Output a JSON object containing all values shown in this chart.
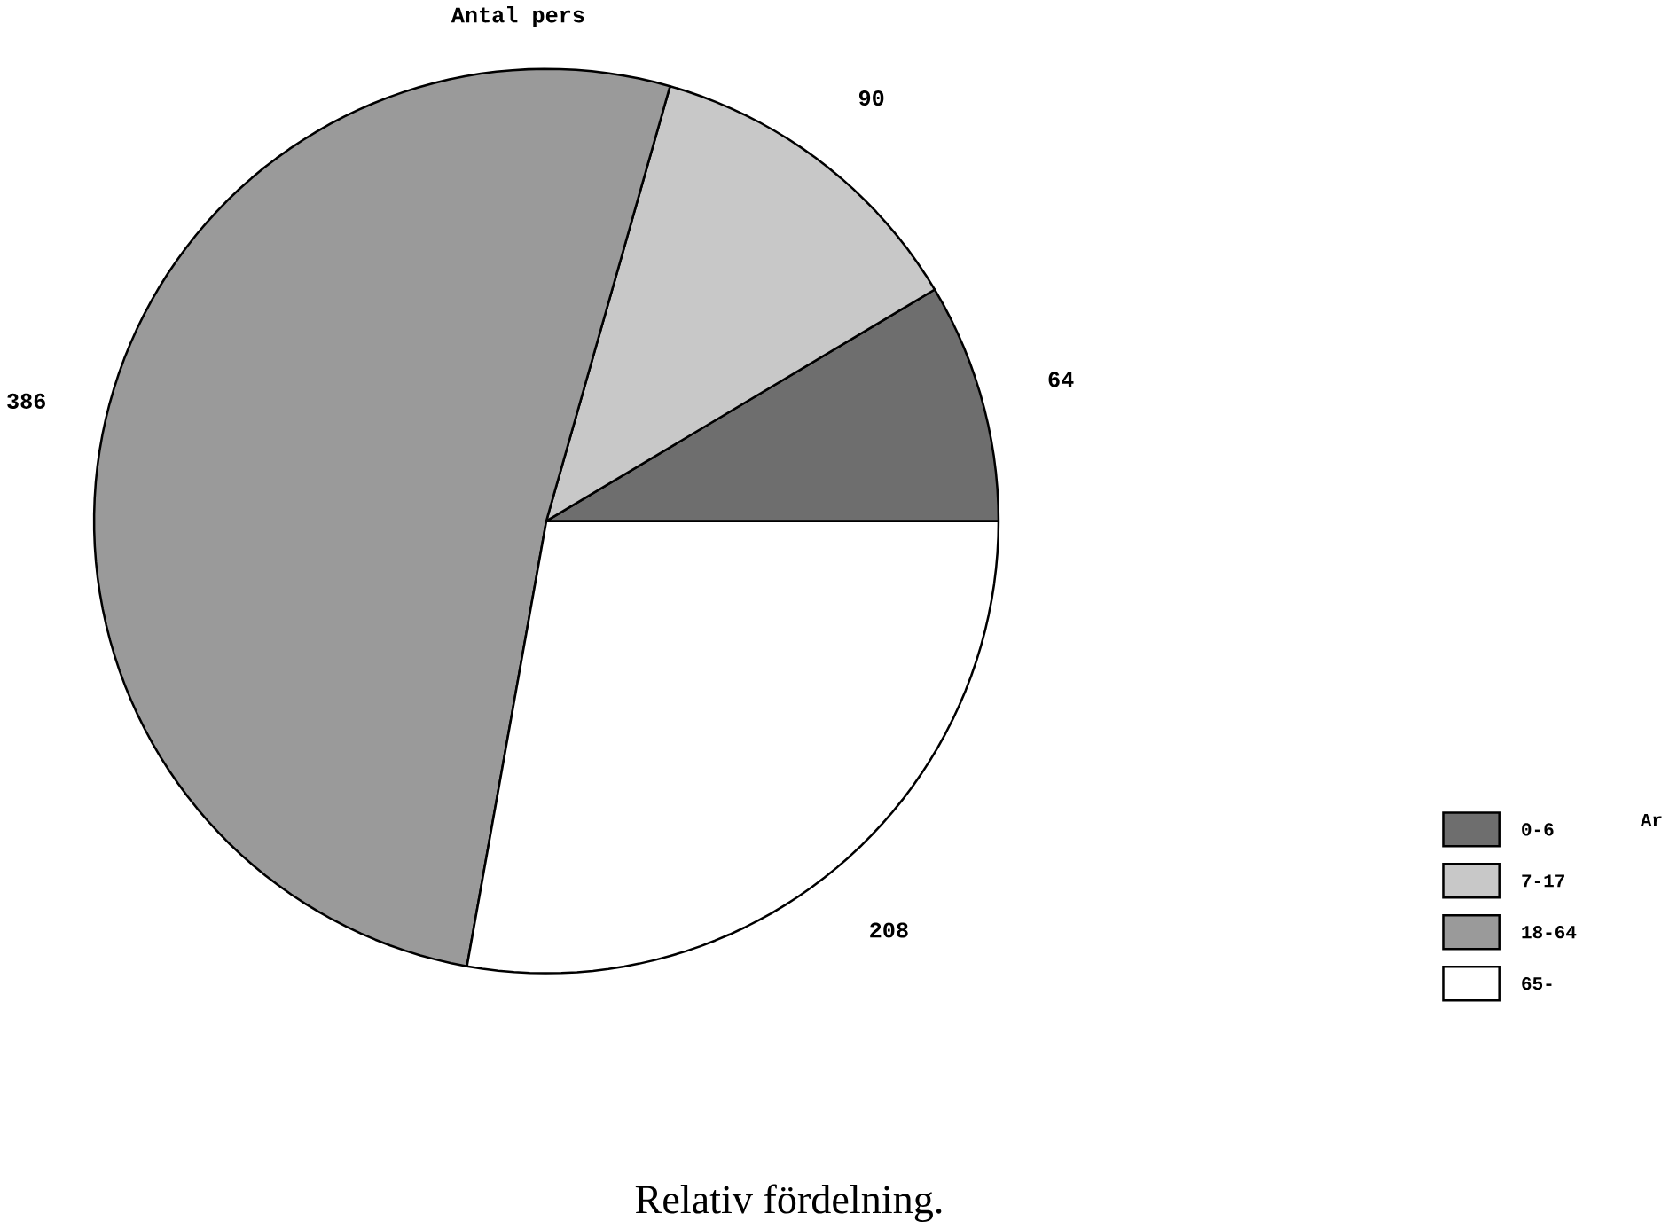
{
  "chart_data": {
    "type": "pie",
    "title": "Antal pers",
    "categories": [
      "0-6",
      "7-17",
      "18-64",
      "65-"
    ],
    "values": [
      64,
      90,
      386,
      208
    ],
    "colors": [
      "#6e6e6e",
      "#c8c8c8",
      "#9a9a9a",
      "#ffffff"
    ],
    "data_labels": true,
    "legend": "right",
    "legend_title": "Ar",
    "annotations": [
      "Relativ fördelning."
    ]
  }
}
